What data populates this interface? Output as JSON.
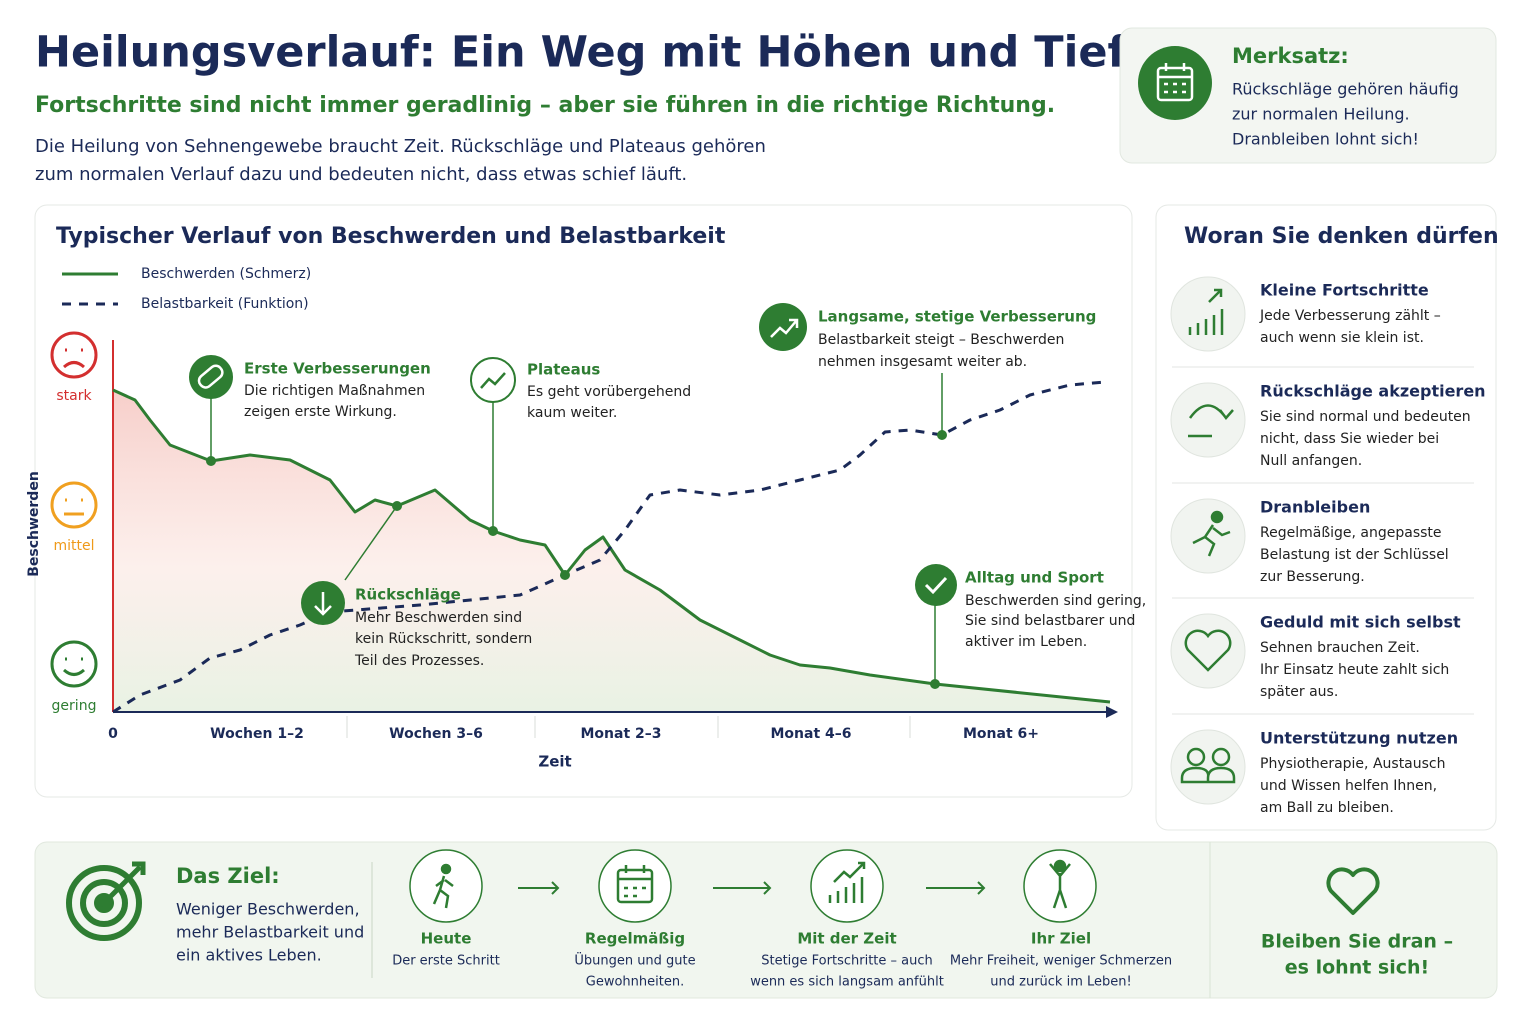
{
  "header": {
    "title": "Heilungsverlauf: Ein Weg mit Höhen und Tiefen",
    "subtitle": "Fortschritte sind nicht immer geradlinig – aber sie führen in die richtige Richtung.",
    "intro": [
      "Die Heilung von Sehnengewebe braucht Zeit. Rückschläge und Plateaus gehören",
      "zum normalen Verlauf dazu und bedeuten nicht, dass etwas schief läuft."
    ]
  },
  "merksatz": {
    "title": "Merksatz:",
    "lines": [
      "Rückschläge gehören häufig",
      "zur normalen Heilung.",
      "Dranbleiben lohnt sich!"
    ]
  },
  "chart": {
    "title": "Typischer Verlauf von Beschwerden und Belastbarkeit",
    "legend": [
      "Beschwerden (Schmerz)",
      "Belastbarkeit (Funktion)"
    ],
    "y_label": "Beschwerden",
    "levels": [
      "stark",
      "mittel",
      "gering"
    ],
    "x_label": "Zeit",
    "x_categories": [
      "0",
      "Wochen 1–2",
      "Wochen 3–6",
      "Monat 2–3",
      "Monat 4–6",
      "Monat 6+"
    ],
    "annotations": [
      {
        "title": "Erste Verbesserungen",
        "lines": [
          "Die richtigen Maßnahmen",
          "zeigen erste Wirkung."
        ]
      },
      {
        "title": "Plateaus",
        "lines": [
          "Es geht vorübergehend",
          "kaum weiter."
        ]
      },
      {
        "title": "Langsame, stetige Verbesserung",
        "lines": [
          "Belastbarkeit steigt – Beschwerden",
          "nehmen insgesamt weiter ab."
        ]
      },
      {
        "title": "Rückschläge",
        "lines": [
          "Mehr Beschwerden sind",
          "kein Rückschritt, sondern",
          "Teil des Prozesses."
        ]
      },
      {
        "title": "Alltag und Sport",
        "lines": [
          "Beschwerden sind gering,",
          "Sie sind belastbarer und",
          "aktiver im Leben."
        ]
      }
    ]
  },
  "sidebar": {
    "title": "Woran Sie denken dürfen",
    "items": [
      {
        "title": "Kleine Fortschritte",
        "lines": [
          "Jede Verbesserung zählt –",
          "auch wenn sie klein ist."
        ]
      },
      {
        "title": "Rückschläge akzeptieren",
        "lines": [
          "Sie sind normal und bedeuten",
          "nicht, dass Sie wieder bei",
          "Null anfangen."
        ]
      },
      {
        "title": "Dranbleiben",
        "lines": [
          "Regelmäßige, angepasste",
          "Belastung ist der Schlüssel",
          "zur Besserung."
        ]
      },
      {
        "title": "Geduld mit sich selbst",
        "lines": [
          "Sehnen brauchen Zeit.",
          "Ihr Einsatz heute zahlt sich",
          "später aus."
        ]
      },
      {
        "title": "Unterstützung nutzen",
        "lines": [
          "Physiotherapie, Austausch",
          "und Wissen helfen Ihnen,",
          "am Ball zu bleiben."
        ]
      }
    ]
  },
  "footer": {
    "goal_title": "Das Ziel:",
    "goal_lines": [
      "Weniger Beschwerden,",
      "mehr Belastbarkeit und",
      "ein aktives Leben."
    ],
    "steps": [
      {
        "title": "Heute",
        "lines": [
          "Der erste Schritt"
        ]
      },
      {
        "title": "Regelmäßig",
        "lines": [
          "Übungen und gute",
          "Gewohnheiten."
        ]
      },
      {
        "title": "Mit der Zeit",
        "lines": [
          "Stetige Fortschritte – auch",
          "wenn es sich langsam anfühlt"
        ]
      },
      {
        "title": "Ihr Ziel",
        "lines": [
          "Mehr Freiheit, weniger Schmerzen",
          "und zurück im Leben!"
        ]
      }
    ],
    "closing": [
      "Bleiben Sie dran –",
      "es lohnt sich!"
    ]
  }
}
